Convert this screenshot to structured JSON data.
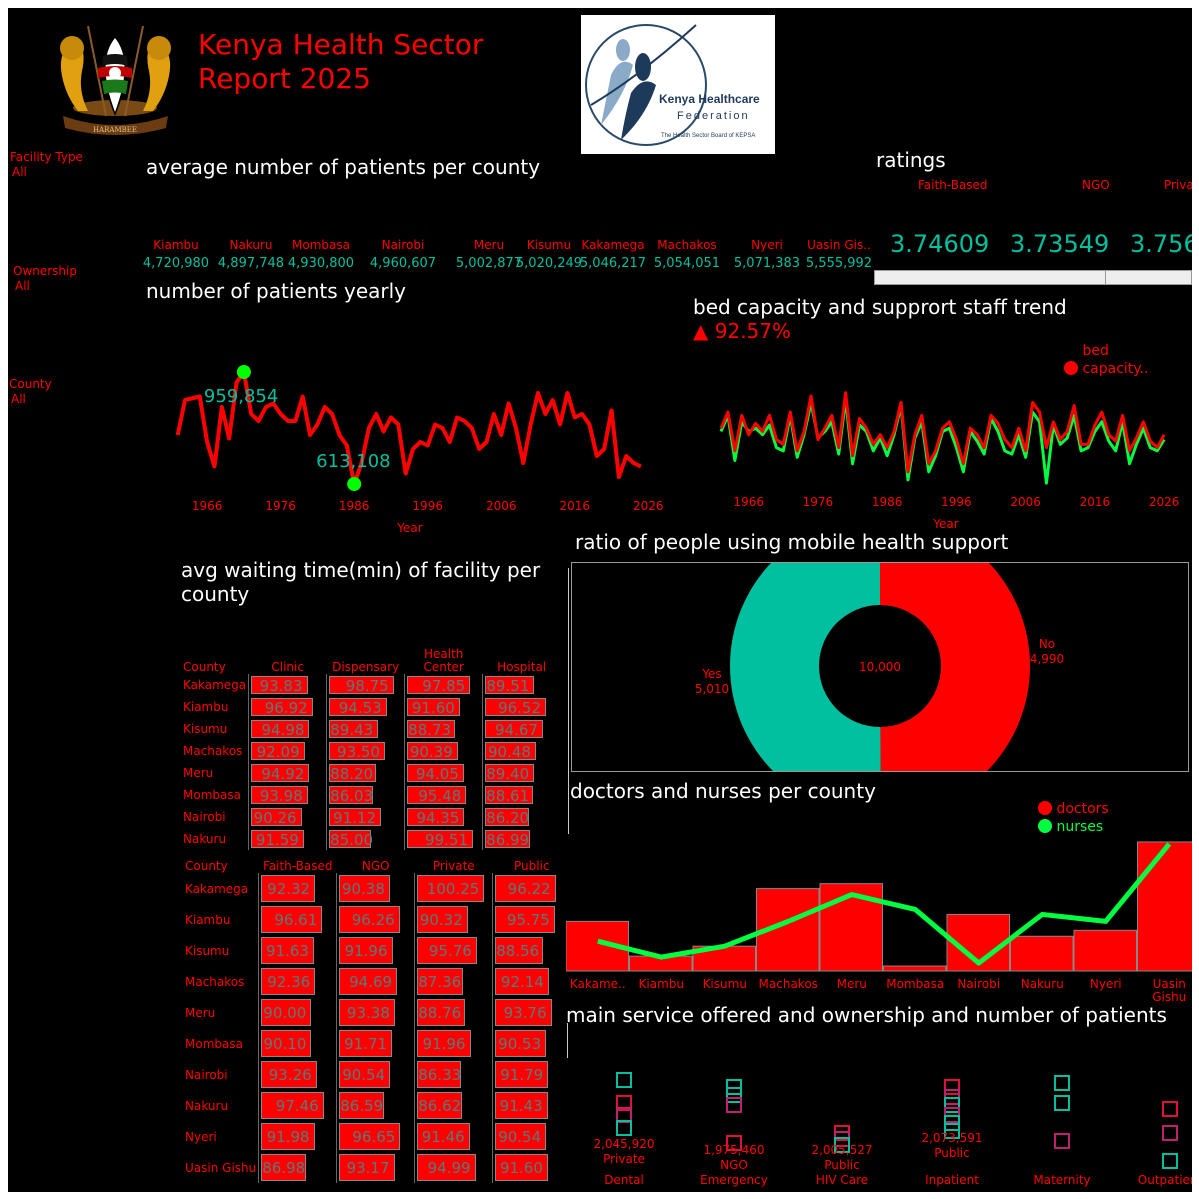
{
  "header": {
    "title_line1": "Kenya Health Sector",
    "title_line2": "Report 2025",
    "logo_text1": "Kenya Healthcare",
    "logo_text2": "Federation",
    "logo_text3": "The Health Sector Board of KEPSA"
  },
  "colors": {
    "accent": "#ff0000",
    "teal": "#00c0a0",
    "green": "#00ff40",
    "background": "#000000"
  },
  "slicers": [
    {
      "label": "Facility Type",
      "value": "All"
    },
    {
      "label": "Ownership",
      "value": "All"
    },
    {
      "label": "County",
      "value": "All"
    }
  ],
  "avg_patients": {
    "title": "average number of patients per county",
    "counties": [
      "Kiambu",
      "Nakuru",
      "Mombasa",
      "Nairobi",
      "Meru",
      "Kisumu",
      "Kakamega",
      "Machakos",
      "Nyeri",
      "Uasin Gis.."
    ],
    "values": [
      "4,720,980",
      "4,897,748",
      "4,930,800",
      "4,960,607",
      "5,002,877",
      "5,020,249",
      "5,046,217",
      "5,054,051",
      "5,071,383",
      "5,555,992"
    ]
  },
  "ratings": {
    "title": "ratings",
    "labels": [
      "Faith-Based",
      "NGO",
      "Privat"
    ],
    "values": [
      "3.74609",
      "3.73549",
      "3.756"
    ]
  },
  "patients_yearly": {
    "title": "number of patients yearly",
    "xlabel": "Year",
    "xticks": [
      "1966",
      "1976",
      "1986",
      "1996",
      "2006",
      "2016",
      "2026"
    ],
    "max_label": "959,854",
    "min_label": "613,108",
    "chart_data": {
      "type": "line",
      "x": [
        1962,
        1963,
        1964,
        1965,
        1966,
        1967,
        1968,
        1969,
        1970,
        1971,
        1972,
        1973,
        1974,
        1975,
        1976,
        1977,
        1978,
        1979,
        1980,
        1981,
        1982,
        1983,
        1984,
        1985,
        1986,
        1987,
        1988,
        1989,
        1990,
        1991,
        1992,
        1993,
        1994,
        1995,
        1996,
        1997,
        1998,
        1999,
        2000,
        2001,
        2002,
        2003,
        2004,
        2005,
        2006,
        2007,
        2008,
        2009,
        2010,
        2011,
        2012,
        2013,
        2014,
        2015,
        2016,
        2017,
        2018,
        2019,
        2020,
        2021,
        2022,
        2023,
        2024,
        2025
      ],
      "y": [
        780,
        880,
        885,
        890,
        760,
        690,
        860,
        770,
        930,
        960,
        840,
        820,
        860,
        870,
        840,
        820,
        820,
        890,
        780,
        810,
        860,
        840,
        780,
        750,
        640,
        700,
        800,
        840,
        790,
        830,
        810,
        670,
        740,
        760,
        750,
        810,
        800,
        760,
        830,
        820,
        800,
        740,
        760,
        840,
        780,
        870,
        800,
        700,
        810,
        900,
        840,
        880,
        810,
        900,
        830,
        840,
        810,
        720,
        740,
        850,
        660,
        720,
        700,
        690
      ]
    }
  },
  "bed_capacity": {
    "title": "bed capacity and supprort staff trend",
    "kpi": "▲ 92.57%",
    "legend": "bed capacity..",
    "xlabel": "Year",
    "xticks": [
      "1966",
      "1976",
      "1986",
      "1996",
      "2006",
      "2016",
      "2026"
    ],
    "chart_data": {
      "type": "line",
      "series": [
        {
          "name": "bed capacity..",
          "values": [
            62,
            72,
            48,
            70,
            58,
            65,
            60,
            70,
            55,
            52,
            72,
            48,
            60,
            82,
            55,
            62,
            70,
            50,
            84,
            45,
            68,
            62,
            52,
            58,
            50,
            60,
            78,
            35,
            58,
            70,
            40,
            48,
            62,
            66,
            55,
            40,
            62,
            58,
            50,
            70,
            65,
            55,
            50,
            62,
            48,
            78,
            72,
            50,
            66,
            55,
            60,
            76,
            52,
            52,
            64,
            72,
            58,
            54,
            70,
            48,
            56,
            66,
            54,
            50,
            58
          ]
        },
        {
          "name": "",
          "values": [
            60,
            70,
            42,
            66,
            60,
            62,
            58,
            64,
            50,
            48,
            70,
            44,
            58,
            78,
            56,
            60,
            66,
            46,
            80,
            40,
            64,
            60,
            48,
            56,
            45,
            58,
            76,
            30,
            56,
            66,
            35,
            45,
            60,
            62,
            50,
            35,
            60,
            54,
            46,
            68,
            60,
            48,
            46,
            58,
            44,
            72,
            66,
            28,
            64,
            52,
            56,
            70,
            48,
            50,
            60,
            66,
            54,
            48,
            66,
            40,
            52,
            62,
            50,
            48,
            55
          ]
        }
      ]
    }
  },
  "mobile_health": {
    "title": "ratio of people using mobile health support",
    "center": "10,000",
    "chart_data": {
      "type": "pie",
      "labels": [
        "No",
        "Yes"
      ],
      "values": [
        4990,
        5010
      ]
    },
    "labels_display": [
      {
        "name": "No",
        "value": "4,990"
      },
      {
        "name": "Yes",
        "value": "5,010"
      }
    ]
  },
  "waiting_time": {
    "title": "avg waiting time(min) of facility per county",
    "table1": {
      "headers": [
        "County",
        "Clinic",
        "Dispensary",
        "Health Center",
        "Hospital"
      ],
      "rows": [
        [
          "Kakamega",
          "93.83",
          "98.75",
          "97.85",
          "89.51"
        ],
        [
          "Kiambu",
          "96.92",
          "94.53",
          "91.60",
          "96.52"
        ],
        [
          "Kisumu",
          "94.98",
          "89.43",
          "88.73",
          "94.67"
        ],
        [
          "Machakos",
          "92.09",
          "93.50",
          "90.39",
          "90.48"
        ],
        [
          "Meru",
          "94.92",
          "88.20",
          "94.05",
          "89.40"
        ],
        [
          "Mombasa",
          "93.98",
          "86.03",
          "95.48",
          "88.61"
        ],
        [
          "Nairobi",
          "90.26",
          "91.12",
          "94.35",
          "86.20"
        ],
        [
          "Nakuru",
          "91.59",
          "85.00",
          "99.51",
          "86.99"
        ]
      ]
    },
    "table2": {
      "headers": [
        "County",
        "Faith-Based",
        "NGO",
        "Private",
        "Public"
      ],
      "rows": [
        [
          "Kakamega",
          "92.32",
          "90.38",
          "100.25",
          "96.22"
        ],
        [
          "Kiambu",
          "96.61",
          "96.26",
          "90.32",
          "95.75"
        ],
        [
          "Kisumu",
          "91.63",
          "91.96",
          "95.76",
          "88.56"
        ],
        [
          "Machakos",
          "92.36",
          "94.69",
          "87.36",
          "92.14"
        ],
        [
          "Meru",
          "90.00",
          "93.38",
          "88.76",
          "93.76"
        ],
        [
          "Mombasa",
          "90.10",
          "91.71",
          "91.96",
          "90.53"
        ],
        [
          "Nairobi",
          "93.26",
          "90.54",
          "86.33",
          "91.79"
        ],
        [
          "Nakuru",
          "97.46",
          "86.59",
          "86.62",
          "91.43"
        ],
        [
          "Nyeri",
          "91.98",
          "96.65",
          "91.46",
          "90.54"
        ],
        [
          "Uasin Gishu",
          "86.98",
          "93.17",
          "94.99",
          "91.60"
        ]
      ]
    }
  },
  "doctors_nurses": {
    "title": "doctors and nurses per county",
    "legend": [
      "doctors",
      "nurses"
    ],
    "chart_data": {
      "type": "bar",
      "categories": [
        "Kakame..",
        "Kiambu",
        "Kisumu",
        "Machakos",
        "Meru",
        "Mombasa",
        "Nairobi",
        "Nakuru",
        "Nyeri",
        "Uasin Gishu"
      ],
      "series": [
        {
          "name": "doctors",
          "values": [
            50,
            15,
            25,
            83,
            88,
            5,
            57,
            35,
            41,
            130
          ]
        },
        {
          "name": "nurses",
          "values": [
            30,
            14,
            25,
            50,
            77,
            62,
            8,
            57,
            50,
            128
          ]
        }
      ]
    }
  },
  "main_service": {
    "title": "main service offered and ownership and number of patients",
    "categories": [
      "Dental",
      "Emergency",
      "HIV Care",
      "Inpatient",
      "Maternity",
      "Outpatient"
    ],
    "labels": [
      {
        "value": "2,045,920",
        "name": "Private"
      },
      {
        "value": "1,975,460",
        "name": "NGO"
      },
      {
        "value": "2,005,527",
        "name": "Public"
      },
      {
        "value": "2,073,591",
        "name": "Public"
      }
    ]
  }
}
